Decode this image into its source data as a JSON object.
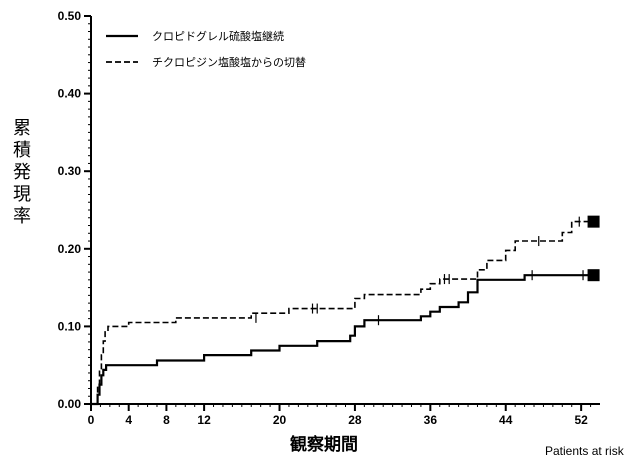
{
  "chart_data": {
    "type": "line",
    "title": "",
    "xlabel": "観察期間",
    "ylabel": "累積発現率",
    "xlim": [
      0,
      54
    ],
    "ylim": [
      0,
      0.5
    ],
    "x_ticks": [
      0,
      4,
      8,
      12,
      20,
      28,
      36,
      44,
      52
    ],
    "y_ticks": [
      "0.00",
      "0.10",
      "0.20",
      "0.30",
      "0.40",
      "0.50"
    ],
    "y_tick_values": [
      0,
      0.1,
      0.2,
      0.3,
      0.4,
      0.5
    ],
    "legend_position": "top-left",
    "series": [
      {
        "name": "クロピドグレル硫酸塩継続",
        "style": "solid",
        "points": [
          [
            0,
            0
          ],
          [
            0.7,
            0
          ],
          [
            0.7,
            0.012
          ],
          [
            0.9,
            0.012
          ],
          [
            0.9,
            0.025
          ],
          [
            1.1,
            0.025
          ],
          [
            1.1,
            0.037
          ],
          [
            1.3,
            0.037
          ],
          [
            1.3,
            0.044
          ],
          [
            1.6,
            0.044
          ],
          [
            1.6,
            0.05
          ],
          [
            7,
            0.05
          ],
          [
            7,
            0.056
          ],
          [
            12,
            0.056
          ],
          [
            12,
            0.063
          ],
          [
            17,
            0.063
          ],
          [
            17,
            0.069
          ],
          [
            20,
            0.069
          ],
          [
            20,
            0.075
          ],
          [
            24,
            0.075
          ],
          [
            24,
            0.081
          ],
          [
            27.5,
            0.081
          ],
          [
            27.5,
            0.088
          ],
          [
            28,
            0.088
          ],
          [
            28,
            0.1
          ],
          [
            29,
            0.1
          ],
          [
            29,
            0.108
          ],
          [
            35,
            0.108
          ],
          [
            35,
            0.113
          ],
          [
            36,
            0.113
          ],
          [
            36,
            0.119
          ],
          [
            37,
            0.119
          ],
          [
            37,
            0.125
          ],
          [
            39,
            0.125
          ],
          [
            39,
            0.131
          ],
          [
            40,
            0.131
          ],
          [
            40,
            0.144
          ],
          [
            41,
            0.144
          ],
          [
            41,
            0.16
          ],
          [
            46,
            0.16
          ],
          [
            46,
            0.166
          ],
          [
            53,
            0.166
          ]
        ],
        "censor_marks": [
          [
            30.5,
            0.108
          ],
          [
            46.8,
            0.166
          ],
          [
            52.2,
            0.166
          ]
        ],
        "end_marker": [
          53,
          0.166
        ]
      },
      {
        "name": "チクロピジン塩酸塩からの切替",
        "style": "dashed",
        "points": [
          [
            0,
            0
          ],
          [
            0.7,
            0
          ],
          [
            0.7,
            0.025
          ],
          [
            0.9,
            0.025
          ],
          [
            0.9,
            0.044
          ],
          [
            1.1,
            0.044
          ],
          [
            1.1,
            0.063
          ],
          [
            1.3,
            0.063
          ],
          [
            1.3,
            0.081
          ],
          [
            1.5,
            0.081
          ],
          [
            1.5,
            0.094
          ],
          [
            1.8,
            0.094
          ],
          [
            1.8,
            0.1
          ],
          [
            4,
            0.1
          ],
          [
            4,
            0.105
          ],
          [
            9,
            0.105
          ],
          [
            9,
            0.111
          ],
          [
            17,
            0.111
          ],
          [
            17,
            0.117
          ],
          [
            21,
            0.117
          ],
          [
            21,
            0.123
          ],
          [
            28,
            0.123
          ],
          [
            28,
            0.136
          ],
          [
            29,
            0.136
          ],
          [
            29,
            0.141
          ],
          [
            35,
            0.141
          ],
          [
            35,
            0.148
          ],
          [
            36,
            0.148
          ],
          [
            36,
            0.155
          ],
          [
            37,
            0.155
          ],
          [
            37,
            0.161
          ],
          [
            41,
            0.161
          ],
          [
            41,
            0.173
          ],
          [
            42,
            0.173
          ],
          [
            42,
            0.185
          ],
          [
            44,
            0.185
          ],
          [
            44,
            0.198
          ],
          [
            45,
            0.198
          ],
          [
            45,
            0.21
          ],
          [
            50,
            0.21
          ],
          [
            50,
            0.221
          ],
          [
            51,
            0.221
          ],
          [
            51,
            0.235
          ],
          [
            53,
            0.235
          ]
        ],
        "censor_marks": [
          [
            17.5,
            0.111
          ],
          [
            23.5,
            0.123
          ],
          [
            24,
            0.123
          ],
          [
            37.5,
            0.161
          ],
          [
            38,
            0.161
          ],
          [
            47.5,
            0.21
          ],
          [
            51.8,
            0.235
          ]
        ],
        "end_marker": [
          53,
          0.235
        ]
      }
    ]
  },
  "footnote": "Patients at risk"
}
